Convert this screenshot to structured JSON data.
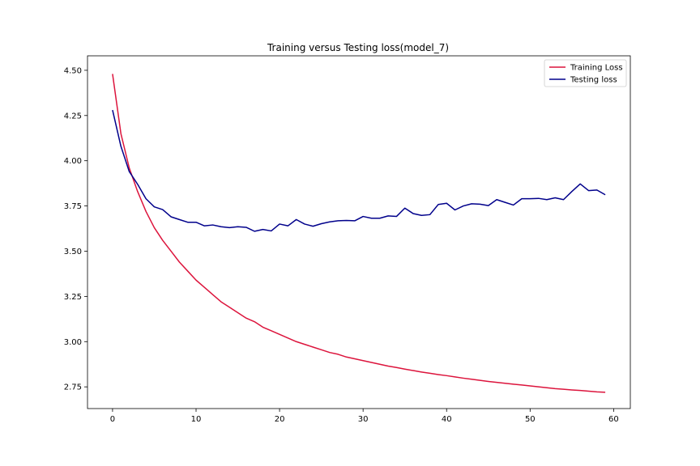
{
  "chart_data": {
    "type": "line",
    "title": "Training versus Testing loss(model_7)",
    "xlabel": "",
    "ylabel": "",
    "xlim": [
      -3,
      62
    ],
    "ylim": [
      2.63,
      4.58
    ],
    "grid": false,
    "legend_position": "top-right",
    "xticks": [
      0,
      10,
      20,
      30,
      40,
      50,
      60
    ],
    "xtick_labels": [
      "0",
      "10",
      "20",
      "30",
      "40",
      "50",
      "60"
    ],
    "yticks": [
      2.75,
      3.0,
      3.25,
      3.5,
      3.75,
      4.0,
      4.25,
      4.5
    ],
    "ytick_labels": [
      "2.75",
      "3.00",
      "3.25",
      "3.50",
      "3.75",
      "4.00",
      "4.25",
      "4.50"
    ],
    "x": [
      0,
      1,
      2,
      3,
      4,
      5,
      6,
      7,
      8,
      9,
      10,
      11,
      12,
      13,
      14,
      15,
      16,
      17,
      18,
      19,
      20,
      21,
      22,
      23,
      24,
      25,
      26,
      27,
      28,
      29,
      30,
      31,
      32,
      33,
      34,
      35,
      36,
      37,
      38,
      39,
      40,
      41,
      42,
      43,
      44,
      45,
      46,
      47,
      48,
      49,
      50,
      51,
      52,
      53,
      54,
      55,
      56,
      57,
      58,
      59
    ],
    "series": [
      {
        "name": "Training Loss",
        "color": "#dc143c",
        "values": [
          4.48,
          4.15,
          3.96,
          3.83,
          3.72,
          3.63,
          3.56,
          3.5,
          3.44,
          3.39,
          3.34,
          3.3,
          3.26,
          3.22,
          3.19,
          3.16,
          3.13,
          3.11,
          3.08,
          3.06,
          3.04,
          3.02,
          3.0,
          2.985,
          2.97,
          2.955,
          2.94,
          2.93,
          2.915,
          2.905,
          2.895,
          2.885,
          2.875,
          2.865,
          2.857,
          2.848,
          2.84,
          2.832,
          2.825,
          2.818,
          2.812,
          2.805,
          2.798,
          2.792,
          2.786,
          2.78,
          2.775,
          2.77,
          2.765,
          2.76,
          2.755,
          2.75,
          2.745,
          2.74,
          2.737,
          2.733,
          2.73,
          2.726,
          2.722,
          2.72
        ]
      },
      {
        "name": "Testing loss",
        "color": "#00008b",
        "values": [
          4.28,
          4.08,
          3.94,
          3.87,
          3.79,
          3.745,
          3.73,
          3.69,
          3.675,
          3.66,
          3.66,
          3.64,
          3.645,
          3.635,
          3.63,
          3.635,
          3.632,
          3.61,
          3.62,
          3.612,
          3.65,
          3.64,
          3.675,
          3.65,
          3.638,
          3.652,
          3.662,
          3.668,
          3.67,
          3.668,
          3.692,
          3.682,
          3.682,
          3.695,
          3.692,
          3.738,
          3.708,
          3.698,
          3.702,
          3.758,
          3.765,
          3.728,
          3.75,
          3.762,
          3.76,
          3.752,
          3.785,
          3.77,
          3.755,
          3.79,
          3.79,
          3.792,
          3.785,
          3.795,
          3.785,
          3.83,
          3.872,
          3.835,
          3.838,
          3.812
        ]
      }
    ]
  }
}
